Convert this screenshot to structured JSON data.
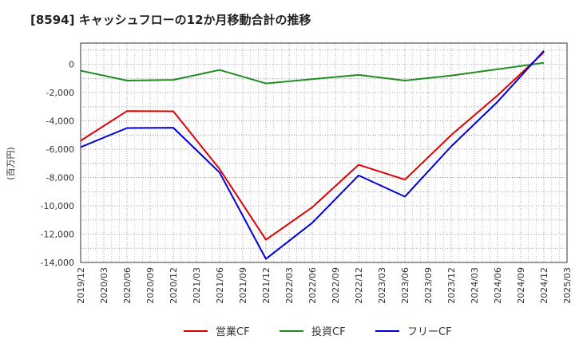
{
  "chart_data": {
    "type": "line",
    "title": "[8594]  キャッシュフローの12か月移動合計の推移",
    "ylabel": "(百万円)",
    "xlabel": "",
    "ylim": [
      -14000,
      1500
    ],
    "yticks": [
      0,
      -2000,
      -4000,
      -6000,
      -8000,
      -10000,
      -12000,
      -14000
    ],
    "ytick_labels": [
      "0",
      "-2,000",
      "-4,000",
      "-6,000",
      "-8,000",
      "-10,000",
      "-12,000",
      "-14,000"
    ],
    "x_categories": [
      "2019/12",
      "2020/03",
      "2020/06",
      "2020/09",
      "2020/12",
      "2021/03",
      "2021/06",
      "2021/09",
      "2021/12",
      "2022/03",
      "2022/06",
      "2022/09",
      "2022/12",
      "2023/03",
      "2023/06",
      "2023/09",
      "2023/12",
      "2024/03",
      "2024/06",
      "2024/09",
      "2024/12",
      "2025/03"
    ],
    "grid": true,
    "legend_position": "bottom-center",
    "series": [
      {
        "name": "営業CF",
        "color": "#e00000",
        "points": [
          [
            "2019/12",
            -5400
          ],
          [
            "2020/06",
            -3300
          ],
          [
            "2020/12",
            -3320
          ],
          [
            "2021/06",
            -7400
          ],
          [
            "2021/12",
            -12400
          ],
          [
            "2022/06",
            -10100
          ],
          [
            "2022/12",
            -7100
          ],
          [
            "2023/06",
            -8150
          ],
          [
            "2023/12",
            -5000
          ],
          [
            "2024/06",
            -2200
          ],
          [
            "2024/12",
            850
          ]
        ]
      },
      {
        "name": "投資CF",
        "color": "#228b22",
        "points": [
          [
            "2019/12",
            -450
          ],
          [
            "2020/06",
            -1150
          ],
          [
            "2020/12",
            -1100
          ],
          [
            "2021/06",
            -400
          ],
          [
            "2021/12",
            -1350
          ],
          [
            "2022/06",
            -1050
          ],
          [
            "2022/12",
            -750
          ],
          [
            "2023/06",
            -1150
          ],
          [
            "2023/12",
            -800
          ],
          [
            "2024/06",
            -350
          ],
          [
            "2024/12",
            100
          ]
        ]
      },
      {
        "name": "フリーCF",
        "color": "#0000dd",
        "points": [
          [
            "2019/12",
            -5850
          ],
          [
            "2020/06",
            -4500
          ],
          [
            "2020/12",
            -4480
          ],
          [
            "2021/06",
            -7650
          ],
          [
            "2021/12",
            -13750
          ],
          [
            "2022/06",
            -11200
          ],
          [
            "2022/12",
            -7850
          ],
          [
            "2023/06",
            -9350
          ],
          [
            "2023/12",
            -5800
          ],
          [
            "2024/06",
            -2650
          ],
          [
            "2024/12",
            950
          ]
        ]
      }
    ]
  }
}
